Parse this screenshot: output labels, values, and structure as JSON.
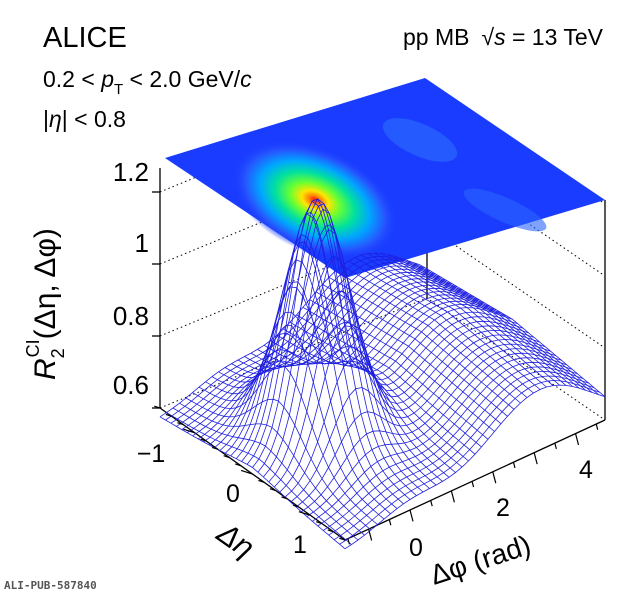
{
  "chart_data": {
    "type": "surface",
    "experiment": "ALICE",
    "system": "pp MB",
    "energy_prefix": "√",
    "energy_symbol": "s",
    "energy_value": " = 13 TeV",
    "cut_pt_lo": "0.2 < ",
    "cut_pt_sym": "p",
    "cut_pt_sub": "T",
    "cut_pt_hi": " < 2.0 GeV/",
    "cut_pt_unit": "c",
    "cut_eta_a": "|",
    "cut_eta_sym": "η",
    "cut_eta_b": "| < 0.8",
    "zlabel": {
      "sym": "R",
      "sub": "2",
      "sup": "CI",
      "rest": "(Δη, Δφ)"
    },
    "xlabel": "Δφ (rad)",
    "ylabel": "Δη",
    "z_ticks": [
      "0.6",
      "0.8",
      "1",
      "1.2"
    ],
    "z_tick_values": [
      0.6,
      0.8,
      1.0,
      1.2
    ],
    "eta_ticks": [
      "−1",
      "0",
      "1"
    ],
    "phi_ticks": [
      "0",
      "2",
      "4"
    ],
    "zlim": [
      0.55,
      1.25
    ],
    "eta_range": [
      -1.6,
      1.6
    ],
    "phi_range": [
      -1.571,
      4.712
    ],
    "model": {
      "baseline": 0.6,
      "near_side_peak": {
        "amplitude": 0.62,
        "center_eta": 0,
        "center_phi": 0,
        "sigma_eta": 0.42,
        "sigma_phi": 0.55
      },
      "near_side_ridge": {
        "amplitude": 0.05,
        "sigma_phi": 0.8
      },
      "away_side_ridge": {
        "amplitude": 0.2,
        "center_phi": 3.1416,
        "sigma_phi": 1.3
      }
    },
    "top_projection": "color map of R2(Δη, Δφ), maximum at Δη = 0, Δφ = 0"
  },
  "watermark": "ALI-PUB-587840"
}
